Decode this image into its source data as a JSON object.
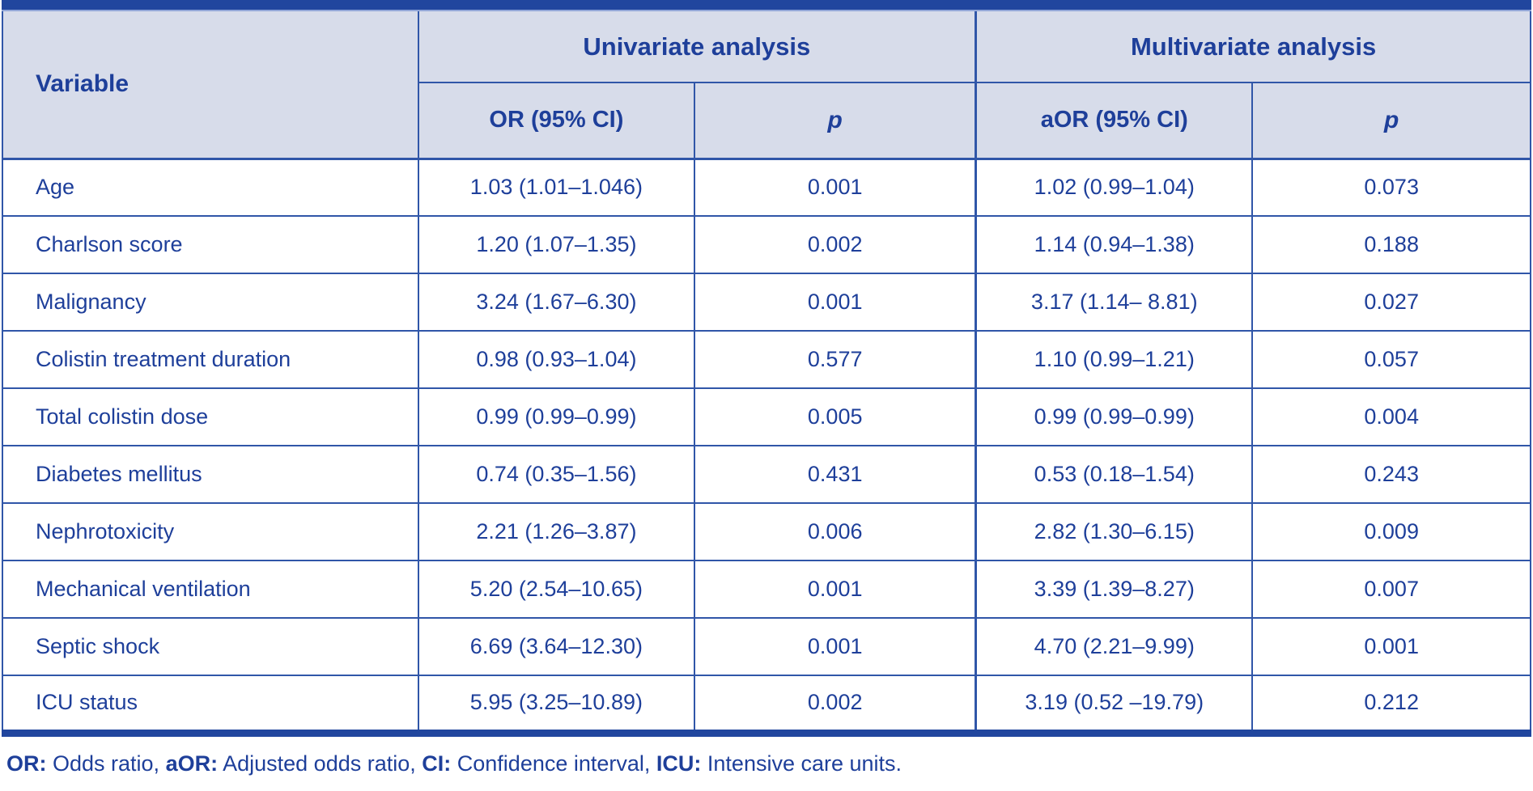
{
  "colors": {
    "bar": "#21469e",
    "border": "#3056a8",
    "header_bg": "#d7dcea",
    "text": "#1e3f9a",
    "bar_underline": "#93a7d8"
  },
  "table": {
    "header": {
      "variable": "Variable",
      "group_univariate": "Univariate analysis",
      "group_multivariate": "Multivariate analysis",
      "col_or": "OR (95% CI)",
      "col_p_uni": "p",
      "col_aor": "aOR (95% CI)",
      "col_p_multi": "p"
    },
    "rows": [
      {
        "variable": "Age",
        "uni_or": "1.03 (1.01–1.046)",
        "uni_p": "0.001",
        "multi_or": "1.02 (0.99–1.04)",
        "multi_p": "0.073"
      },
      {
        "variable": "Charlson score",
        "uni_or": "1.20 (1.07–1.35)",
        "uni_p": "0.002",
        "multi_or": "1.14 (0.94–1.38)",
        "multi_p": "0.188"
      },
      {
        "variable": "Malignancy",
        "uni_or": "3.24 (1.67–6.30)",
        "uni_p": "0.001",
        "multi_or": "3.17 (1.14– 8.81)",
        "multi_p": "0.027"
      },
      {
        "variable": "Colistin treatment duration",
        "uni_or": "0.98 (0.93–1.04)",
        "uni_p": "0.577",
        "multi_or": "1.10 (0.99–1.21)",
        "multi_p": "0.057"
      },
      {
        "variable": "Total colistin dose",
        "uni_or": "0.99 (0.99–0.99)",
        "uni_p": "0.005",
        "multi_or": "0.99 (0.99–0.99)",
        "multi_p": "0.004"
      },
      {
        "variable": "Diabetes mellitus",
        "uni_or": "0.74 (0.35–1.56)",
        "uni_p": "0.431",
        "multi_or": "0.53 (0.18–1.54)",
        "multi_p": "0.243"
      },
      {
        "variable": "Nephrotoxicity",
        "uni_or": "2.21 (1.26–3.87)",
        "uni_p": "0.006",
        "multi_or": "2.82 (1.30–6.15)",
        "multi_p": "0.009"
      },
      {
        "variable": "Mechanical ventilation",
        "uni_or": "5.20 (2.54–10.65)",
        "uni_p": "0.001",
        "multi_or": "3.39 (1.39–8.27)",
        "multi_p": "0.007"
      },
      {
        "variable": "Septic shock",
        "uni_or": "6.69 (3.64–12.30)",
        "uni_p": "0.001",
        "multi_or": "4.70 (2.21–9.99)",
        "multi_p": "0.001"
      },
      {
        "variable": "ICU status",
        "uni_or": "5.95 (3.25–10.89)",
        "uni_p": "0.002",
        "multi_or": "3.19 (0.52 –19.79)",
        "multi_p": "0.212"
      }
    ]
  },
  "footnote": {
    "parts": [
      {
        "abbr": "OR:",
        "text": " Odds ratio, "
      },
      {
        "abbr": "aOR:",
        "text": " Adjusted odds ratio, "
      },
      {
        "abbr": "CI:",
        "text": " Confidence interval, "
      },
      {
        "abbr": "ICU:",
        "text": " Intensive care units."
      }
    ]
  }
}
